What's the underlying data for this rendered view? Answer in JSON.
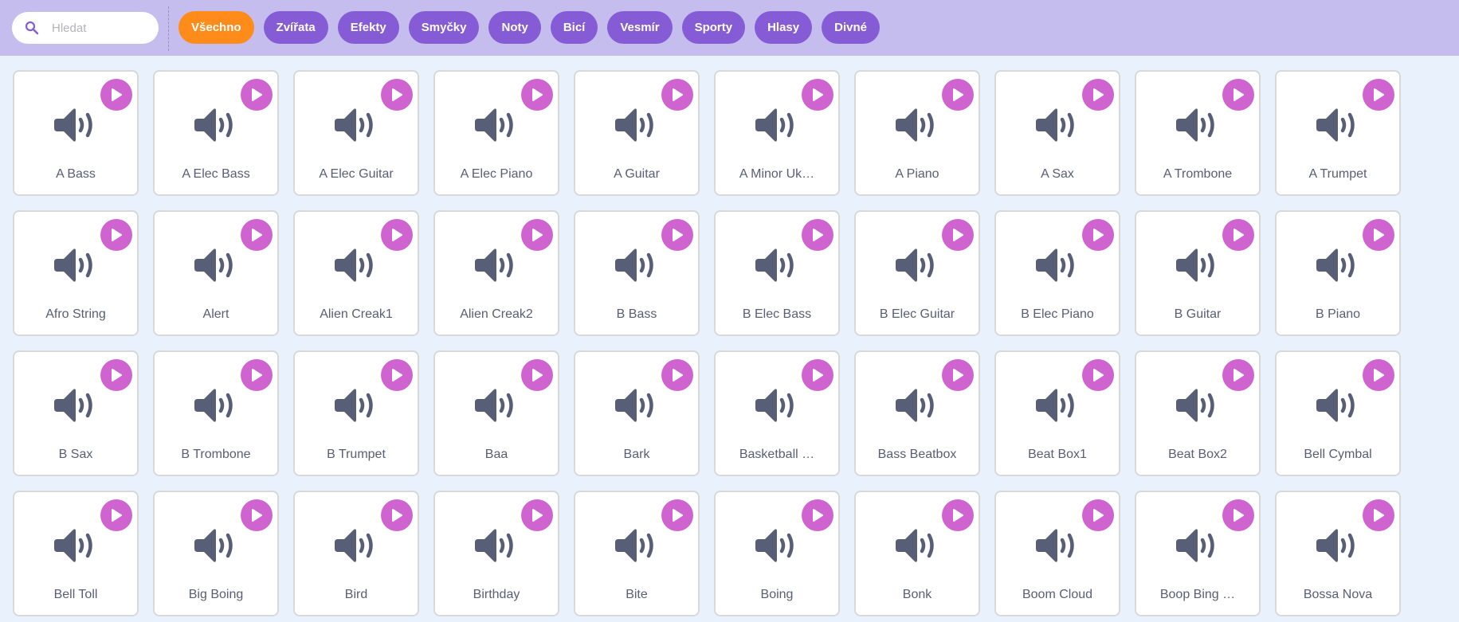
{
  "colors": {
    "topbar": "#c5bdee",
    "pill": "#855cd6",
    "pill_active": "#ff8c1a",
    "play": "#cf63cf",
    "icon": "#575e75",
    "background": "#e9f1fc"
  },
  "search": {
    "placeholder": "Hledat",
    "value": ""
  },
  "categories": [
    {
      "label": "Všechno",
      "active": true
    },
    {
      "label": "Zvířata"
    },
    {
      "label": "Efekty"
    },
    {
      "label": "Smyčky"
    },
    {
      "label": "Noty"
    },
    {
      "label": "Bicí"
    },
    {
      "label": "Vesmír"
    },
    {
      "label": "Sporty"
    },
    {
      "label": "Hlasy"
    },
    {
      "label": "Divné"
    }
  ],
  "sounds": [
    "A Bass",
    "A Elec Bass",
    "A Elec Guitar",
    "A Elec Piano",
    "A Guitar",
    "A Minor Uk…",
    "A Piano",
    "A Sax",
    "A Trombone",
    "A Trumpet",
    "Afro String",
    "Alert",
    "Alien Creak1",
    "Alien Creak2",
    "B Bass",
    "B Elec Bass",
    "B Elec Guitar",
    "B Elec Piano",
    "B Guitar",
    "B Piano",
    "B Sax",
    "B Trombone",
    "B Trumpet",
    "Baa",
    "Bark",
    "Basketball …",
    "Bass Beatbox",
    "Beat Box1",
    "Beat Box2",
    "Bell Cymbal",
    "Bell Toll",
    "Big Boing",
    "Bird",
    "Birthday",
    "Bite",
    "Boing",
    "Bonk",
    "Boom Cloud",
    "Boop Bing …",
    "Bossa Nova"
  ]
}
